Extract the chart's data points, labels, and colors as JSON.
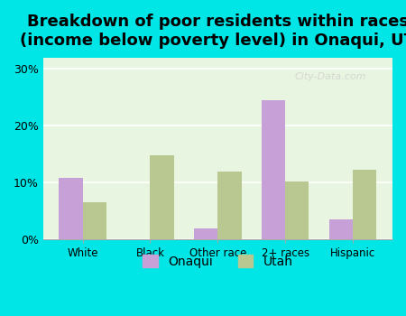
{
  "title": "Breakdown of poor residents within races\n(income below poverty level) in Onaqui, UT",
  "categories": [
    "White",
    "Black",
    "Other race",
    "2+ races",
    "Hispanic"
  ],
  "onaqui_values": [
    10.8,
    0,
    2.0,
    24.5,
    3.5
  ],
  "utah_values": [
    6.5,
    14.8,
    12.0,
    10.2,
    12.2
  ],
  "onaqui_color": "#c8a0d8",
  "utah_color": "#b8c890",
  "bg_color_outer": "#00e5e5",
  "bg_color_inner": "#e8f5e0",
  "ylim": [
    0,
    32
  ],
  "yticks": [
    0,
    10,
    20,
    30
  ],
  "ytick_labels": [
    "0%",
    "10%",
    "20%",
    "30%"
  ],
  "bar_width": 0.35,
  "title_fontsize": 13,
  "legend_labels": [
    "Onaqui",
    "Utah"
  ]
}
